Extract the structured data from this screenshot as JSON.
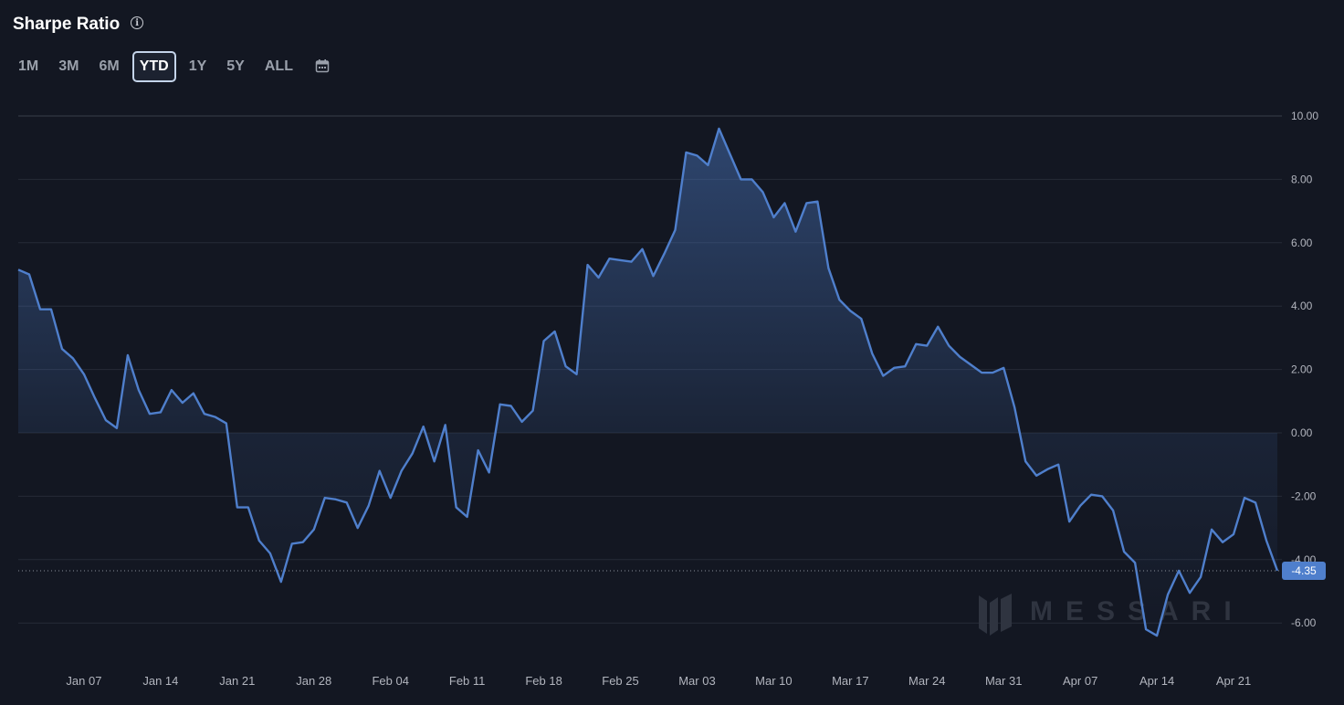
{
  "header": {
    "title": "Sharpe Ratio"
  },
  "ranges": {
    "items": [
      {
        "label": "1M",
        "active": false
      },
      {
        "label": "3M",
        "active": false
      },
      {
        "label": "6M",
        "active": false
      },
      {
        "label": "YTD",
        "active": true
      },
      {
        "label": "1Y",
        "active": false
      },
      {
        "label": "5Y",
        "active": false
      },
      {
        "label": "ALL",
        "active": false
      }
    ]
  },
  "watermark": "MESSARI",
  "colors": {
    "background": "#131722",
    "line": "#4f7fcc",
    "grid": "#262b37",
    "label_bg": "#4f7fcc"
  },
  "chart_data": {
    "type": "area",
    "x_start": "Jan 01",
    "x_step_days": 1,
    "values": [
      5.15,
      5.0,
      3.9,
      3.9,
      2.65,
      2.35,
      1.85,
      1.1,
      0.4,
      0.15,
      2.45,
      1.35,
      0.6,
      0.65,
      1.35,
      0.95,
      1.25,
      0.6,
      0.5,
      0.3,
      -2.35,
      -2.35,
      -3.4,
      -3.8,
      -4.7,
      -3.5,
      -3.45,
      -3.05,
      -2.05,
      -2.1,
      -2.2,
      -3.0,
      -2.3,
      -1.2,
      -2.05,
      -1.2,
      -0.65,
      0.2,
      -0.9,
      0.25,
      -2.35,
      -2.65,
      -0.55,
      -1.25,
      0.9,
      0.85,
      0.35,
      0.7,
      2.9,
      3.2,
      2.1,
      1.85,
      5.3,
      4.9,
      5.5,
      5.45,
      5.4,
      5.8,
      4.95,
      5.65,
      6.4,
      8.85,
      8.75,
      8.45,
      9.6,
      8.8,
      8.0,
      8.0,
      7.6,
      6.8,
      7.25,
      6.35,
      7.25,
      7.3,
      5.2,
      4.2,
      3.85,
      3.6,
      2.5,
      1.8,
      2.05,
      2.1,
      2.8,
      2.75,
      3.35,
      2.75,
      2.4,
      2.15,
      1.9,
      1.9,
      2.05,
      0.8,
      -0.9,
      -1.35,
      -1.15,
      -1.0,
      -2.8,
      -2.3,
      -1.95,
      -2.0,
      -2.45,
      -3.75,
      -4.1,
      -6.2,
      -6.4,
      -5.1,
      -4.35,
      -5.05,
      -4.55,
      -3.05,
      -3.45,
      -3.2,
      -2.05,
      -2.2,
      -3.4,
      -4.35
    ],
    "x_tick_labels": [
      "Jan 07",
      "Jan 14",
      "Jan 21",
      "Jan 28",
      "Feb 04",
      "Feb 11",
      "Feb 18",
      "Feb 25",
      "Mar 03",
      "Mar 10",
      "Mar 17",
      "Mar 24",
      "Mar 31",
      "Apr 07",
      "Apr 14",
      "Apr 21"
    ],
    "y_ticks": [
      "10.00",
      "8.00",
      "6.00",
      "4.00",
      "2.00",
      "0.00",
      "-2.00",
      "-4.00",
      "-6.00"
    ],
    "ylim": [
      -6.8,
      10.0
    ],
    "last_value": "-4.35",
    "grid": true,
    "legend": "none"
  }
}
